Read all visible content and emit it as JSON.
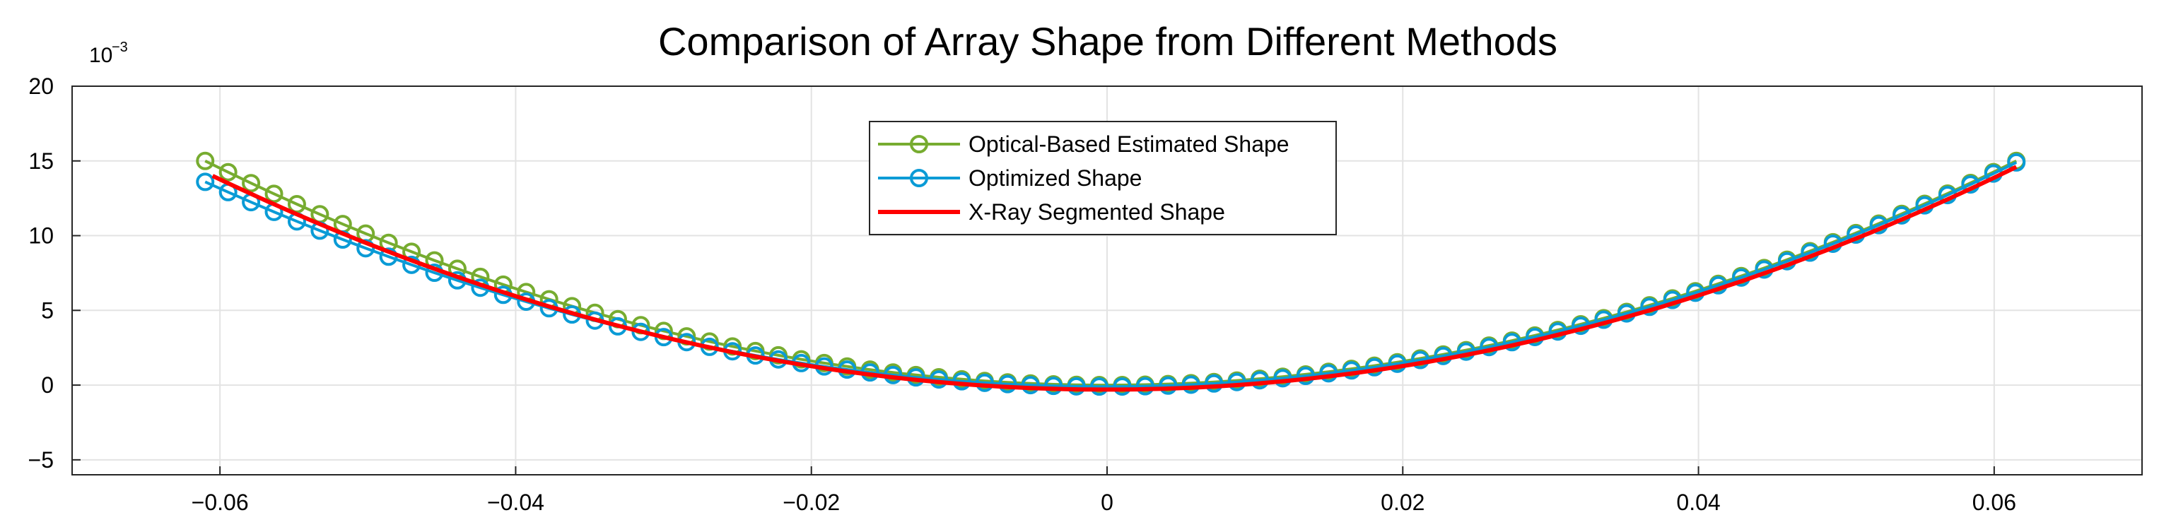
{
  "chart_data": {
    "type": "line",
    "title": "Comparison of Array Shape from Different Methods",
    "xlabel": "",
    "ylabel": "",
    "y_scale_label": "10",
    "y_scale_exponent": "−3",
    "xlim": [
      -0.07,
      0.07
    ],
    "ylim": [
      -6,
      20
    ],
    "x_ticks": [
      -0.06,
      -0.04,
      -0.02,
      0,
      0.02,
      0.04,
      0.06
    ],
    "x_tick_labels": [
      "−0.06",
      "−0.04",
      "−0.02",
      "0",
      "0.02",
      "0.04",
      "0.06"
    ],
    "y_ticks": [
      -5,
      0,
      5,
      10,
      15,
      20
    ],
    "y_tick_labels": [
      "−5",
      "0",
      "5",
      "10",
      "15",
      "20"
    ],
    "grid": true,
    "legend_position": "top-center",
    "series": [
      {
        "name": "Optical-Based Estimated Shape",
        "color": "#77ac30",
        "marker": "circle",
        "x_start": -0.061,
        "x_end": 0.0615,
        "y_left": 15.0,
        "y_min": 0.0,
        "y_right": 15.0,
        "n_points": 80
      },
      {
        "name": "Optimized Shape",
        "color": "#0a9bd6",
        "marker": "circle",
        "x_start": -0.061,
        "x_end": 0.0615,
        "y_left": 13.6,
        "y_min": -0.1,
        "y_right": 14.9,
        "n_points": 80
      },
      {
        "name": "X-Ray Segmented Shape",
        "color": "#ff0000",
        "marker": "none",
        "x_start": -0.0605,
        "x_end": 0.0615,
        "y_left": 14.0,
        "y_min": -0.3,
        "y_right": 14.6,
        "n_points": 200
      }
    ]
  }
}
